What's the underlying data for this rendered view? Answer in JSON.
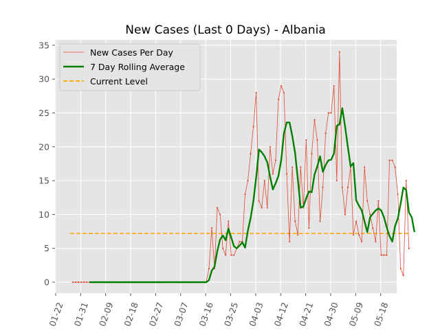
{
  "chart_data": {
    "type": "line",
    "title": "New Cases (Last 0 Days) - Albania",
    "xlabel": "",
    "ylabel": "",
    "grid": true,
    "legend_position": "top-left",
    "start_date": "2020-01-22",
    "x_tick_labels": [
      "01-22",
      "01-31",
      "02-09",
      "02-18",
      "02-27",
      "03-07",
      "03-16",
      "03-25",
      "04-03",
      "04-12",
      "04-21",
      "04-30",
      "05-09",
      "05-18"
    ],
    "y_ticks": [
      0,
      5,
      10,
      15,
      20,
      25,
      30,
      35
    ],
    "ylim": [
      -1.7,
      35.5
    ],
    "series": [
      {
        "name": "New Cases Per Day",
        "style": "thin-line-with-dots",
        "color": "#E24A33",
        "values": [
          0,
          0,
          0,
          0,
          0,
          0,
          0,
          0,
          0,
          0,
          0,
          0,
          0,
          0,
          0,
          0,
          0,
          0,
          0,
          0,
          0,
          0,
          0,
          0,
          0,
          0,
          0,
          0,
          0,
          0,
          0,
          0,
          0,
          0,
          0,
          0,
          0,
          0,
          0,
          0,
          0,
          0,
          0,
          0,
          0,
          0,
          0,
          0,
          0,
          2,
          8,
          2,
          11,
          10,
          5,
          4,
          9,
          4,
          4,
          5,
          6,
          6,
          13,
          15,
          19,
          23,
          28,
          12,
          11,
          15,
          11,
          20,
          16,
          18,
          27,
          29,
          28,
          16,
          6,
          17,
          9,
          7,
          17,
          11,
          21,
          8,
          19,
          24,
          21,
          9,
          14,
          22,
          25,
          25,
          29,
          15,
          34,
          14,
          10,
          14,
          17,
          7,
          9,
          7,
          6,
          17,
          12,
          10,
          8,
          6,
          12,
          4,
          4,
          4,
          18,
          18,
          17,
          13,
          2,
          1,
          15,
          5
        ]
      },
      {
        "name": "7 Day Rolling Average",
        "style": "thick-line",
        "color": "#008000",
        "values": [
          0,
          0,
          0,
          0,
          0,
          0,
          0,
          0,
          0,
          0,
          0,
          0,
          0,
          0,
          0,
          0,
          0,
          0,
          0,
          0,
          0,
          0,
          0,
          0,
          0,
          0,
          0,
          0,
          0,
          0,
          0,
          0,
          0,
          0,
          0,
          0,
          0,
          0,
          0,
          0,
          0,
          0,
          0,
          0,
          0,
          0,
          0,
          0,
          0,
          0.3,
          1.7,
          2.3,
          4.6,
          6.3,
          6.9,
          6.2,
          7.9,
          6.6,
          5.3,
          5.0,
          5.4,
          5.9,
          5.1,
          7.6,
          9.5,
          12.0,
          15.5,
          19.6,
          19.2,
          18.6,
          17.7,
          15.6,
          13.7,
          14.6,
          15.7,
          18.0,
          22.0,
          23.6,
          23.6,
          21.6,
          19.1,
          15.2,
          11.0,
          11.2,
          12.4,
          13.4,
          13.3,
          15.9,
          17.1,
          18.6,
          16.3,
          17.3,
          18.0,
          18.1,
          19.0,
          23.1,
          23.3,
          25.7,
          23.0,
          20.0,
          17.1,
          17.6,
          12.1,
          11.3,
          10.6,
          9.0,
          7.4,
          9.6,
          10.1,
          10.6,
          10.9,
          10.6,
          9.6,
          8.1,
          6.8,
          6.0,
          8.3,
          9.4,
          11.6,
          14.0,
          13.6,
          10.3,
          9.6,
          7.4
        ]
      },
      {
        "name": "Current Level",
        "style": "dashed-horizontal",
        "color": "#FFA500",
        "value": 7.2
      }
    ]
  }
}
